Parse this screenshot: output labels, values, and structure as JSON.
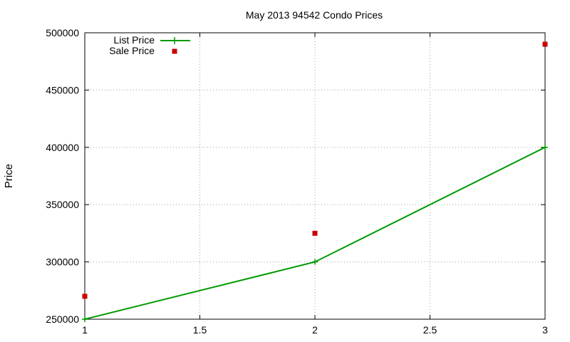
{
  "chart_data": {
    "type": "line",
    "title": "May 2013 94542 Condo Prices",
    "xlabel": "",
    "ylabel": "Price",
    "xlim": [
      1,
      3
    ],
    "ylim": [
      250000,
      500000
    ],
    "xticks": [
      1,
      1.5,
      2,
      2.5,
      3
    ],
    "xtick_labels": [
      "1",
      "1.5",
      "2",
      "2.5",
      "3"
    ],
    "yticks": [
      250000,
      300000,
      350000,
      400000,
      450000,
      500000
    ],
    "ytick_labels": [
      "250000",
      "300000",
      "350000",
      "400000",
      "450000",
      "500000"
    ],
    "grid": true,
    "legend_position": "top-left",
    "series": [
      {
        "name": "List Price",
        "style": "linespoints",
        "marker": "plus",
        "color": "#009900",
        "x": [
          1,
          2,
          3
        ],
        "y": [
          250000,
          300000,
          400000
        ]
      },
      {
        "name": "Sale Price",
        "style": "points",
        "marker": "square",
        "color": "#cc0000",
        "x": [
          1,
          2,
          3
        ],
        "y": [
          270000,
          325000,
          490000
        ]
      }
    ]
  }
}
